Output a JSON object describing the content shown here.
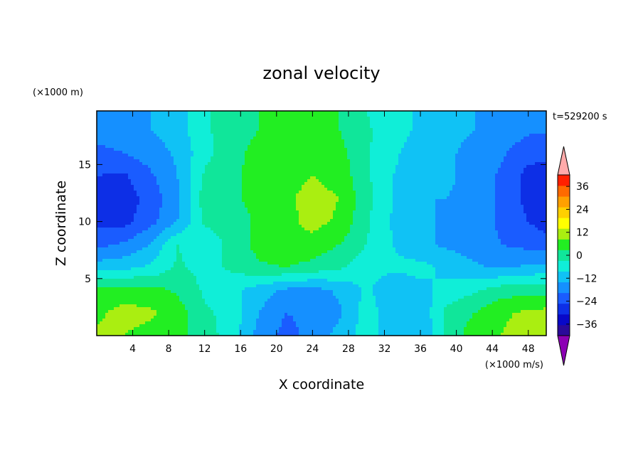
{
  "chart_data": {
    "type": "heatmap",
    "title": "zonal velocity",
    "xlabel": "X coordinate",
    "ylabel": "Z coordinate",
    "x_unit": "(×1000 m/s)",
    "y_unit": "(×1000 m)",
    "time_label": "t=529200 s",
    "xlim": [
      0,
      50
    ],
    "ylim": [
      0,
      19.7
    ],
    "x_ticks": [
      4,
      8,
      12,
      16,
      20,
      24,
      28,
      32,
      36,
      40,
      44,
      48
    ],
    "y_ticks": [
      5,
      10,
      15
    ],
    "colorbar": {
      "ticks": [
        36,
        24,
        12,
        0,
        -12,
        -24,
        -36
      ],
      "levels": [
        -42,
        -36,
        -30,
        -24,
        -18,
        -12,
        -6,
        0,
        6,
        12,
        18,
        24,
        30,
        36,
        42
      ],
      "colors": [
        "#2a0a9a",
        "#0808c8",
        "#0d2fe6",
        "#1a5cff",
        "#1590ff",
        "#10c2f5",
        "#10eed8",
        "#10e69a",
        "#22ee22",
        "#aaee11",
        "#ffff00",
        "#ffd000",
        "#ffa000",
        "#ff6a00",
        "#ff2000"
      ],
      "over_color": "#ffaaaa",
      "under_color": "#8c00b4"
    },
    "grid_x": [
      0,
      3,
      6,
      9,
      12,
      15,
      18,
      21,
      24,
      27,
      30,
      33,
      36,
      39,
      42,
      45,
      48,
      50
    ],
    "grid_z": [
      0,
      2,
      4,
      6,
      8,
      10,
      12,
      14,
      16,
      18,
      19.7
    ],
    "values": [
      [
        13,
        12,
        10,
        8,
        3,
        -3,
        -14,
        -20,
        -16,
        -10,
        -3,
        -10,
        -12,
        2,
        9,
        12,
        15,
        16
      ],
      [
        11,
        14,
        13,
        9,
        1,
        -2,
        -12,
        -18,
        -17,
        -13,
        -3,
        -10,
        -11,
        2,
        6,
        11,
        13,
        14
      ],
      [
        7,
        9,
        8,
        5,
        -1,
        -4,
        -9,
        -13,
        -14,
        -11,
        -5,
        -10,
        -8,
        -4,
        -1,
        3,
        4,
        4
      ],
      [
        -9,
        -8,
        -5,
        1,
        -2,
        1,
        5,
        6,
        4,
        1,
        -4,
        -5,
        -4,
        -8,
        -11,
        -13,
        -11,
        -10
      ],
      [
        -20,
        -17,
        -12,
        0,
        -4,
        2,
        8,
        11,
        10,
        6,
        0,
        -6,
        -11,
        -13,
        -15,
        -18,
        -20,
        -21
      ],
      [
        -25,
        -26,
        -20,
        -12,
        1,
        3,
        7,
        10,
        14,
        11,
        1,
        -7,
        -11,
        -13,
        -15,
        -19,
        -24,
        -27
      ],
      [
        -27,
        -27,
        -22,
        -13,
        3,
        5,
        8,
        11,
        14,
        12,
        2,
        -6,
        -12,
        -12,
        -14,
        -19,
        -26,
        -27
      ],
      [
        -24,
        -25,
        -19,
        -12,
        1,
        5,
        8,
        10,
        12,
        10,
        1,
        -6,
        -10,
        -11,
        -14,
        -19,
        -26,
        -27
      ],
      [
        -20,
        -18,
        -15,
        -11,
        -2,
        4,
        8,
        9,
        11,
        8,
        1,
        -5,
        -9,
        -11,
        -14,
        -17,
        -22,
        -22
      ],
      [
        -15,
        -14,
        -12,
        -9,
        -1,
        3,
        6,
        7,
        8,
        6,
        1,
        -4,
        -7,
        -10,
        -12,
        -14,
        -17,
        -17
      ],
      [
        -14,
        -13,
        -12,
        -9,
        -1,
        3,
        6,
        7,
        8,
        6,
        0,
        -4,
        -7,
        -10,
        -12,
        -14,
        -16,
        -16
      ]
    ]
  }
}
